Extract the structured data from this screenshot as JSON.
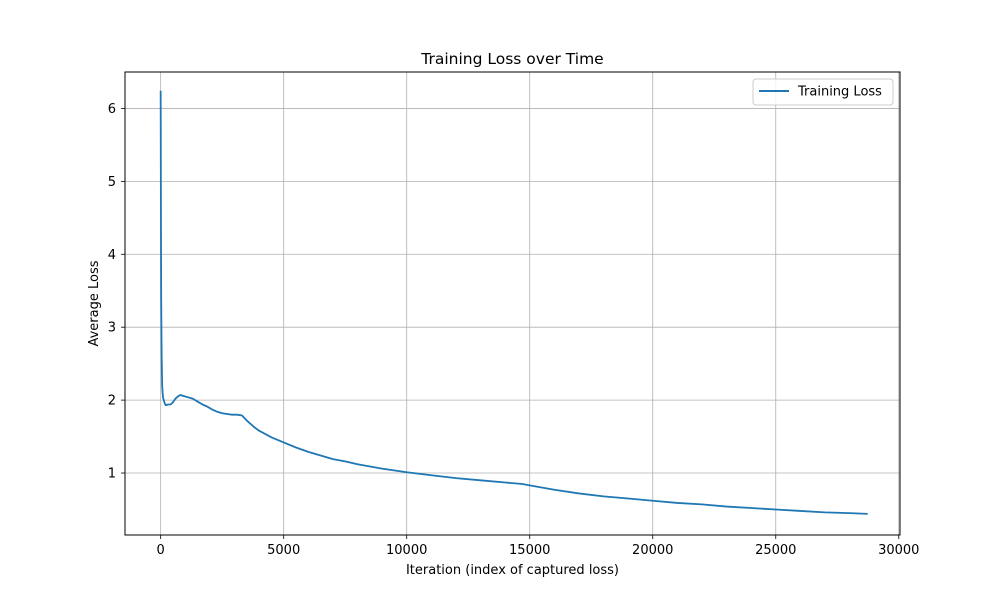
{
  "chart_data": {
    "type": "line",
    "title": "Training Loss over Time",
    "xlabel": "Iteration (index of captured loss)",
    "ylabel": "Average Loss",
    "xlim": [
      -1450,
      30050
    ],
    "ylim": [
      0.15,
      6.5
    ],
    "xticks": [
      0,
      5000,
      10000,
      15000,
      20000,
      25000,
      30000
    ],
    "xtick_labels": [
      "0",
      "5000",
      "10000",
      "15000",
      "20000",
      "25000",
      "30000"
    ],
    "yticks": [
      1,
      2,
      3,
      4,
      5,
      6
    ],
    "ytick_labels": [
      "1",
      "2",
      "3",
      "4",
      "5",
      "6"
    ],
    "grid": true,
    "legend_position": "top-right",
    "series": [
      {
        "name": "Training Loss",
        "color": "#1f77b4",
        "x": [
          0,
          10,
          20,
          40,
          60,
          80,
          100,
          150,
          200,
          300,
          400,
          500,
          600,
          700,
          800,
          900,
          1000,
          1100,
          1300,
          1500,
          1700,
          1900,
          2100,
          2300,
          2500,
          2700,
          2900,
          3100,
          3300,
          3500,
          3800,
          4000,
          4500,
          5000,
          5500,
          6000,
          6500,
          7000,
          7500,
          8000,
          9000,
          10000,
          11000,
          12000,
          13000,
          14000,
          14700,
          15000,
          16000,
          17000,
          18000,
          19000,
          20000,
          21000,
          22000,
          23000,
          24000,
          25000,
          26000,
          27000,
          28000,
          28700
        ],
        "y": [
          6.23,
          4.6,
          3.4,
          2.6,
          2.2,
          2.1,
          2.03,
          1.97,
          1.93,
          1.94,
          1.94,
          1.97,
          2.02,
          2.05,
          2.07,
          2.06,
          2.05,
          2.04,
          2.02,
          1.98,
          1.94,
          1.91,
          1.87,
          1.84,
          1.82,
          1.81,
          1.8,
          1.8,
          1.79,
          1.72,
          1.63,
          1.58,
          1.49,
          1.42,
          1.35,
          1.29,
          1.24,
          1.19,
          1.16,
          1.12,
          1.06,
          1.01,
          0.97,
          0.93,
          0.9,
          0.87,
          0.85,
          0.83,
          0.77,
          0.72,
          0.68,
          0.65,
          0.62,
          0.59,
          0.57,
          0.54,
          0.52,
          0.5,
          0.48,
          0.46,
          0.45,
          0.44
        ]
      }
    ]
  }
}
